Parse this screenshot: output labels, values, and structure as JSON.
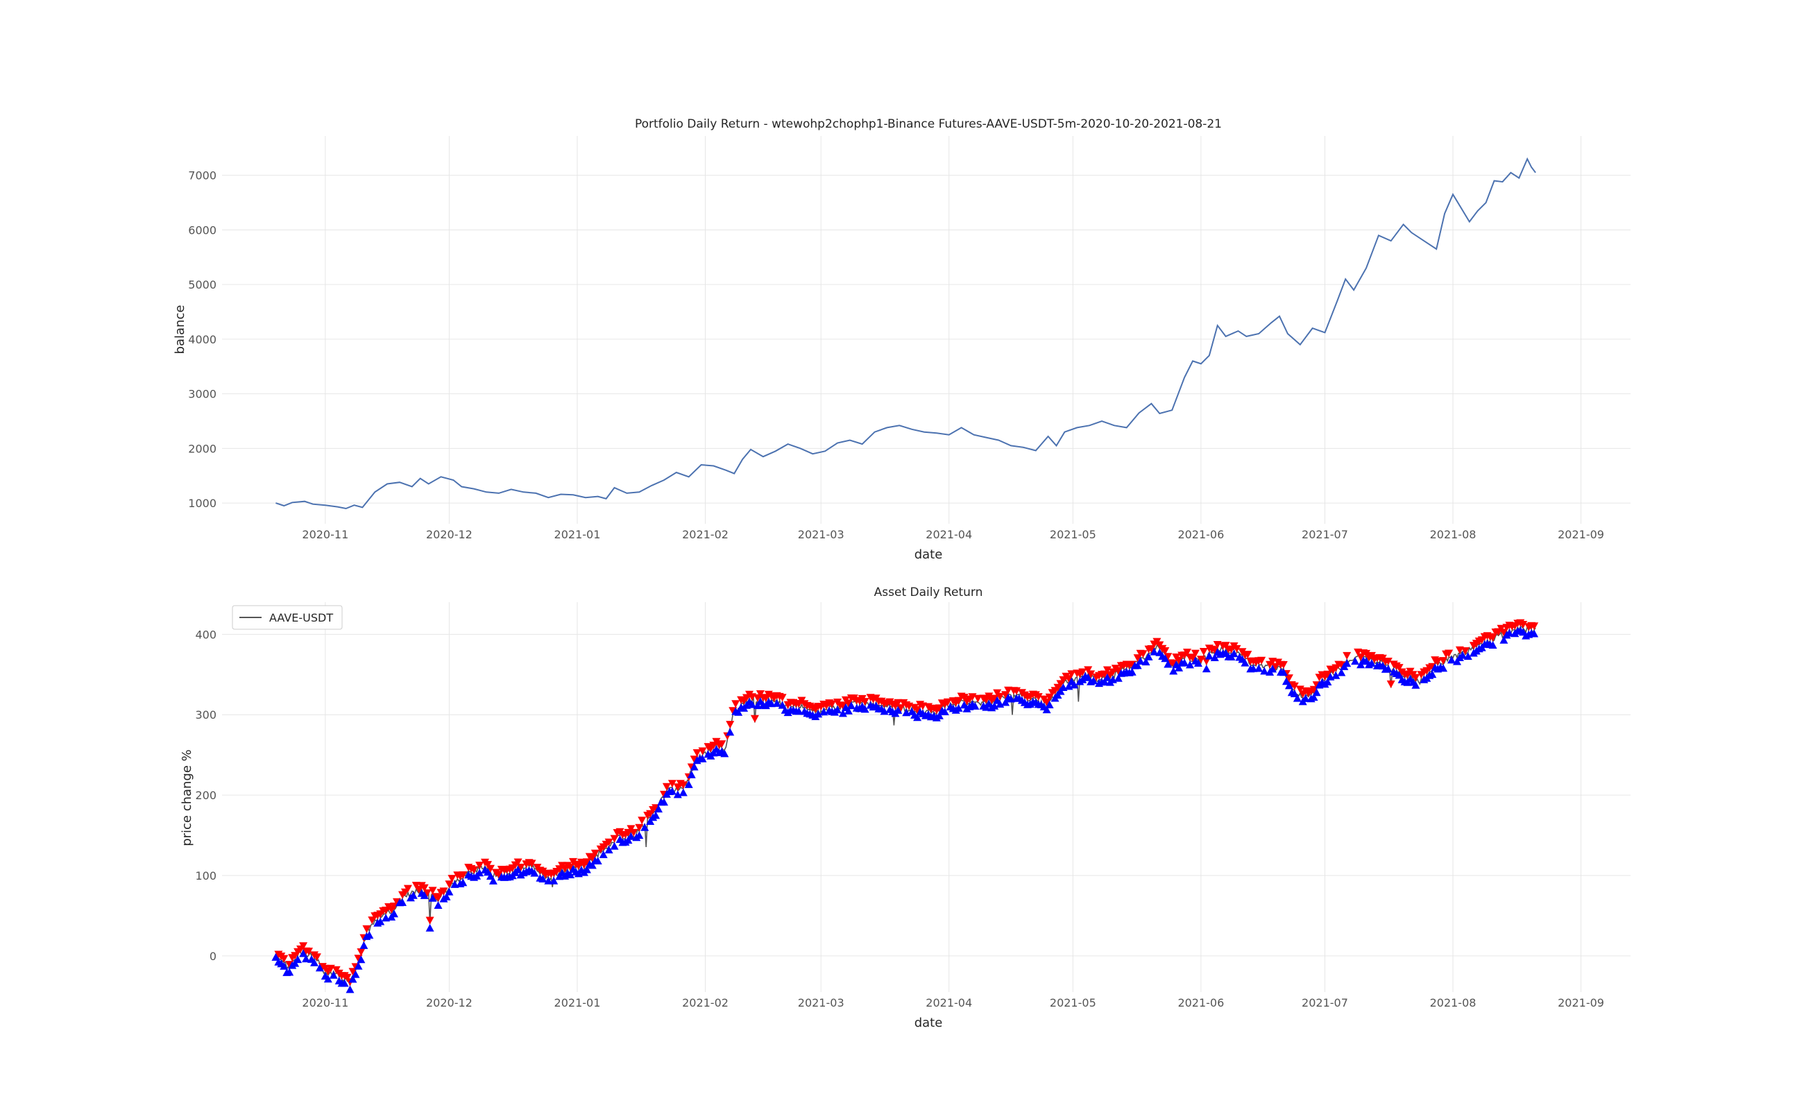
{
  "chart_data": [
    {
      "type": "line",
      "title": "Portfolio Daily Return - wtewohp2chophp1-Binance Futures-AAVE-USDT-5m-2020-10-20-2021-08-21",
      "xlabel": "date",
      "ylabel": "balance",
      "xlim": [
        "2020-10-07",
        "2021-09-13"
      ],
      "ylim": [
        620,
        7720
      ],
      "x_ticks": [
        "2020-11",
        "2020-12",
        "2021-01",
        "2021-02",
        "2021-03",
        "2021-04",
        "2021-05",
        "2021-06",
        "2021-07",
        "2021-08",
        "2021-09"
      ],
      "y_ticks": [
        1000,
        2000,
        3000,
        4000,
        5000,
        6000,
        7000
      ],
      "grid": true,
      "line_color": "#4c72b0",
      "series": [
        {
          "points": [
            [
              "2020-10-20",
              1000
            ],
            [
              "2020-10-22",
              950
            ],
            [
              "2020-10-24",
              1010
            ],
            [
              "2020-10-27",
              1030
            ],
            [
              "2020-10-29",
              980
            ],
            [
              "2020-11-01",
              960
            ],
            [
              "2020-11-04",
              930
            ],
            [
              "2020-11-06",
              900
            ],
            [
              "2020-11-08",
              960
            ],
            [
              "2020-11-10",
              920
            ],
            [
              "2020-11-13",
              1200
            ],
            [
              "2020-11-16",
              1350
            ],
            [
              "2020-11-19",
              1380
            ],
            [
              "2020-11-22",
              1300
            ],
            [
              "2020-11-24",
              1450
            ],
            [
              "2020-11-26",
              1350
            ],
            [
              "2020-11-29",
              1480
            ],
            [
              "2020-12-02",
              1420
            ],
            [
              "2020-12-04",
              1300
            ],
            [
              "2020-12-07",
              1260
            ],
            [
              "2020-12-10",
              1200
            ],
            [
              "2020-12-13",
              1180
            ],
            [
              "2020-12-16",
              1250
            ],
            [
              "2020-12-19",
              1200
            ],
            [
              "2020-12-22",
              1180
            ],
            [
              "2020-12-25",
              1100
            ],
            [
              "2020-12-28",
              1160
            ],
            [
              "2020-12-31",
              1150
            ],
            [
              "2021-01-03",
              1100
            ],
            [
              "2021-01-06",
              1120
            ],
            [
              "2021-01-08",
              1080
            ],
            [
              "2021-01-10",
              1280
            ],
            [
              "2021-01-13",
              1180
            ],
            [
              "2021-01-16",
              1200
            ],
            [
              "2021-01-19",
              1320
            ],
            [
              "2021-01-22",
              1420
            ],
            [
              "2021-01-25",
              1560
            ],
            [
              "2021-01-28",
              1480
            ],
            [
              "2021-01-31",
              1700
            ],
            [
              "2021-02-03",
              1680
            ],
            [
              "2021-02-06",
              1600
            ],
            [
              "2021-02-08",
              1540
            ],
            [
              "2021-02-10",
              1800
            ],
            [
              "2021-02-12",
              1980
            ],
            [
              "2021-02-15",
              1850
            ],
            [
              "2021-02-18",
              1950
            ],
            [
              "2021-02-21",
              2080
            ],
            [
              "2021-02-24",
              2000
            ],
            [
              "2021-02-27",
              1900
            ],
            [
              "2021-03-02",
              1950
            ],
            [
              "2021-03-05",
              2100
            ],
            [
              "2021-03-08",
              2150
            ],
            [
              "2021-03-11",
              2080
            ],
            [
              "2021-03-14",
              2300
            ],
            [
              "2021-03-17",
              2380
            ],
            [
              "2021-03-20",
              2420
            ],
            [
              "2021-03-23",
              2350
            ],
            [
              "2021-03-26",
              2300
            ],
            [
              "2021-03-29",
              2280
            ],
            [
              "2021-04-01",
              2250
            ],
            [
              "2021-04-04",
              2380
            ],
            [
              "2021-04-07",
              2250
            ],
            [
              "2021-04-10",
              2200
            ],
            [
              "2021-04-13",
              2150
            ],
            [
              "2021-04-16",
              2050
            ],
            [
              "2021-04-19",
              2020
            ],
            [
              "2021-04-22",
              1960
            ],
            [
              "2021-04-25",
              2220
            ],
            [
              "2021-04-27",
              2050
            ],
            [
              "2021-04-29",
              2300
            ],
            [
              "2021-05-02",
              2380
            ],
            [
              "2021-05-05",
              2420
            ],
            [
              "2021-05-08",
              2500
            ],
            [
              "2021-05-11",
              2420
            ],
            [
              "2021-05-14",
              2380
            ],
            [
              "2021-05-17",
              2650
            ],
            [
              "2021-05-20",
              2820
            ],
            [
              "2021-05-22",
              2640
            ],
            [
              "2021-05-25",
              2700
            ],
            [
              "2021-05-28",
              3300
            ],
            [
              "2021-05-30",
              3600
            ],
            [
              "2021-06-01",
              3550
            ],
            [
              "2021-06-03",
              3700
            ],
            [
              "2021-06-05",
              4250
            ],
            [
              "2021-06-07",
              4050
            ],
            [
              "2021-06-10",
              4150
            ],
            [
              "2021-06-12",
              4050
            ],
            [
              "2021-06-15",
              4100
            ],
            [
              "2021-06-18",
              4300
            ],
            [
              "2021-06-20",
              4420
            ],
            [
              "2021-06-22",
              4100
            ],
            [
              "2021-06-25",
              3900
            ],
            [
              "2021-06-28",
              4200
            ],
            [
              "2021-07-01",
              4120
            ],
            [
              "2021-07-04",
              4700
            ],
            [
              "2021-07-06",
              5100
            ],
            [
              "2021-07-08",
              4900
            ],
            [
              "2021-07-11",
              5300
            ],
            [
              "2021-07-14",
              5900
            ],
            [
              "2021-07-17",
              5800
            ],
            [
              "2021-07-20",
              6100
            ],
            [
              "2021-07-22",
              5950
            ],
            [
              "2021-07-25",
              5800
            ],
            [
              "2021-07-28",
              5650
            ],
            [
              "2021-07-30",
              6300
            ],
            [
              "2021-08-01",
              6650
            ],
            [
              "2021-08-03",
              6400
            ],
            [
              "2021-08-05",
              6150
            ],
            [
              "2021-08-07",
              6350
            ],
            [
              "2021-08-09",
              6500
            ],
            [
              "2021-08-11",
              6900
            ],
            [
              "2021-08-13",
              6880
            ],
            [
              "2021-08-15",
              7050
            ],
            [
              "2021-08-17",
              6950
            ],
            [
              "2021-08-19",
              7300
            ],
            [
              "2021-08-20",
              7150
            ],
            [
              "2021-08-21",
              7050
            ]
          ]
        }
      ]
    },
    {
      "type": "line",
      "title": "Asset Daily Return",
      "xlabel": "date",
      "ylabel": "price change %",
      "xlim": [
        "2020-10-07",
        "2021-09-13"
      ],
      "ylim": [
        -45,
        440
      ],
      "x_ticks": [
        "2020-11",
        "2020-12",
        "2021-01",
        "2021-02",
        "2021-03",
        "2021-04",
        "2021-05",
        "2021-06",
        "2021-07",
        "2021-08",
        "2021-09"
      ],
      "y_ticks": [
        0,
        100,
        200,
        300,
        400
      ],
      "grid": true,
      "legend": {
        "position": "top-left",
        "entries": [
          "AAVE-USDT"
        ]
      },
      "line_color": "#555555",
      "buy_marker_color": "#0000ff",
      "sell_marker_color": "#ff0000",
      "series": [
        {
          "name": "AAVE-USDT",
          "points": [
            [
              "2020-10-20",
              0
            ],
            [
              "2020-10-23",
              -15
            ],
            [
              "2020-10-26",
              5
            ],
            [
              "2020-10-29",
              0
            ],
            [
              "2020-11-01",
              -20
            ],
            [
              "2020-11-04",
              -22
            ],
            [
              "2020-11-07",
              -35
            ],
            [
              "2020-11-09",
              -10
            ],
            [
              "2020-11-11",
              30
            ],
            [
              "2020-11-14",
              50
            ],
            [
              "2020-11-17",
              55
            ],
            [
              "2020-11-20",
              75
            ],
            [
              "2020-11-24",
              82
            ],
            [
              "2020-11-28",
              70
            ],
            [
              "2020-12-01",
              85
            ],
            [
              "2020-12-05",
              102
            ],
            [
              "2020-12-09",
              110
            ],
            [
              "2020-12-13",
              98
            ],
            [
              "2020-12-17",
              108
            ],
            [
              "2020-12-21",
              112
            ],
            [
              "2020-12-25",
              95
            ],
            [
              "2020-12-29",
              108
            ],
            [
              "2021-01-03",
              112
            ],
            [
              "2021-01-07",
              130
            ],
            [
              "2021-01-11",
              148
            ],
            [
              "2021-01-15",
              150
            ],
            [
              "2021-01-19",
              175
            ],
            [
              "2021-01-23",
              205
            ],
            [
              "2021-01-27",
              210
            ],
            [
              "2021-01-30",
              245
            ],
            [
              "2021-02-03",
              258
            ],
            [
              "2021-02-06",
              260
            ],
            [
              "2021-02-08",
              305
            ],
            [
              "2021-02-12",
              318
            ],
            [
              "2021-02-16",
              320
            ],
            [
              "2021-02-20",
              312
            ],
            [
              "2021-02-24",
              310
            ],
            [
              "2021-02-28",
              302
            ],
            [
              "2021-03-04",
              308
            ],
            [
              "2021-03-08",
              312
            ],
            [
              "2021-03-12",
              315
            ],
            [
              "2021-03-16",
              310
            ],
            [
              "2021-03-20",
              308
            ],
            [
              "2021-03-24",
              305
            ],
            [
              "2021-03-28",
              302
            ],
            [
              "2021-04-01",
              312
            ],
            [
              "2021-04-05",
              316
            ],
            [
              "2021-04-09",
              313
            ],
            [
              "2021-04-13",
              320
            ],
            [
              "2021-04-17",
              325
            ],
            [
              "2021-04-21",
              318
            ],
            [
              "2021-04-25",
              312
            ],
            [
              "2021-04-29",
              340
            ],
            [
              "2021-05-03",
              350
            ],
            [
              "2021-05-07",
              345
            ],
            [
              "2021-05-11",
              350
            ],
            [
              "2021-05-15",
              360
            ],
            [
              "2021-05-19",
              375
            ],
            [
              "2021-05-22",
              385
            ],
            [
              "2021-05-25",
              360
            ],
            [
              "2021-05-28",
              372
            ],
            [
              "2021-06-01",
              368
            ],
            [
              "2021-06-05",
              382
            ],
            [
              "2021-06-09",
              378
            ],
            [
              "2021-06-13",
              365
            ],
            [
              "2021-06-17",
              360
            ],
            [
              "2021-06-21",
              355
            ],
            [
              "2021-06-24",
              325
            ],
            [
              "2021-06-27",
              320
            ],
            [
              "2021-06-30",
              340
            ],
            [
              "2021-07-04",
              355
            ],
            [
              "2021-07-08",
              372
            ],
            [
              "2021-07-12",
              368
            ],
            [
              "2021-07-16",
              362
            ],
            [
              "2021-07-20",
              350
            ],
            [
              "2021-07-24",
              340
            ],
            [
              "2021-07-28",
              362
            ],
            [
              "2021-08-01",
              372
            ],
            [
              "2021-08-05",
              380
            ],
            [
              "2021-08-09",
              390
            ],
            [
              "2021-08-13",
              400
            ],
            [
              "2021-08-17",
              408
            ],
            [
              "2021-08-21",
              405
            ]
          ]
        }
      ]
    }
  ]
}
